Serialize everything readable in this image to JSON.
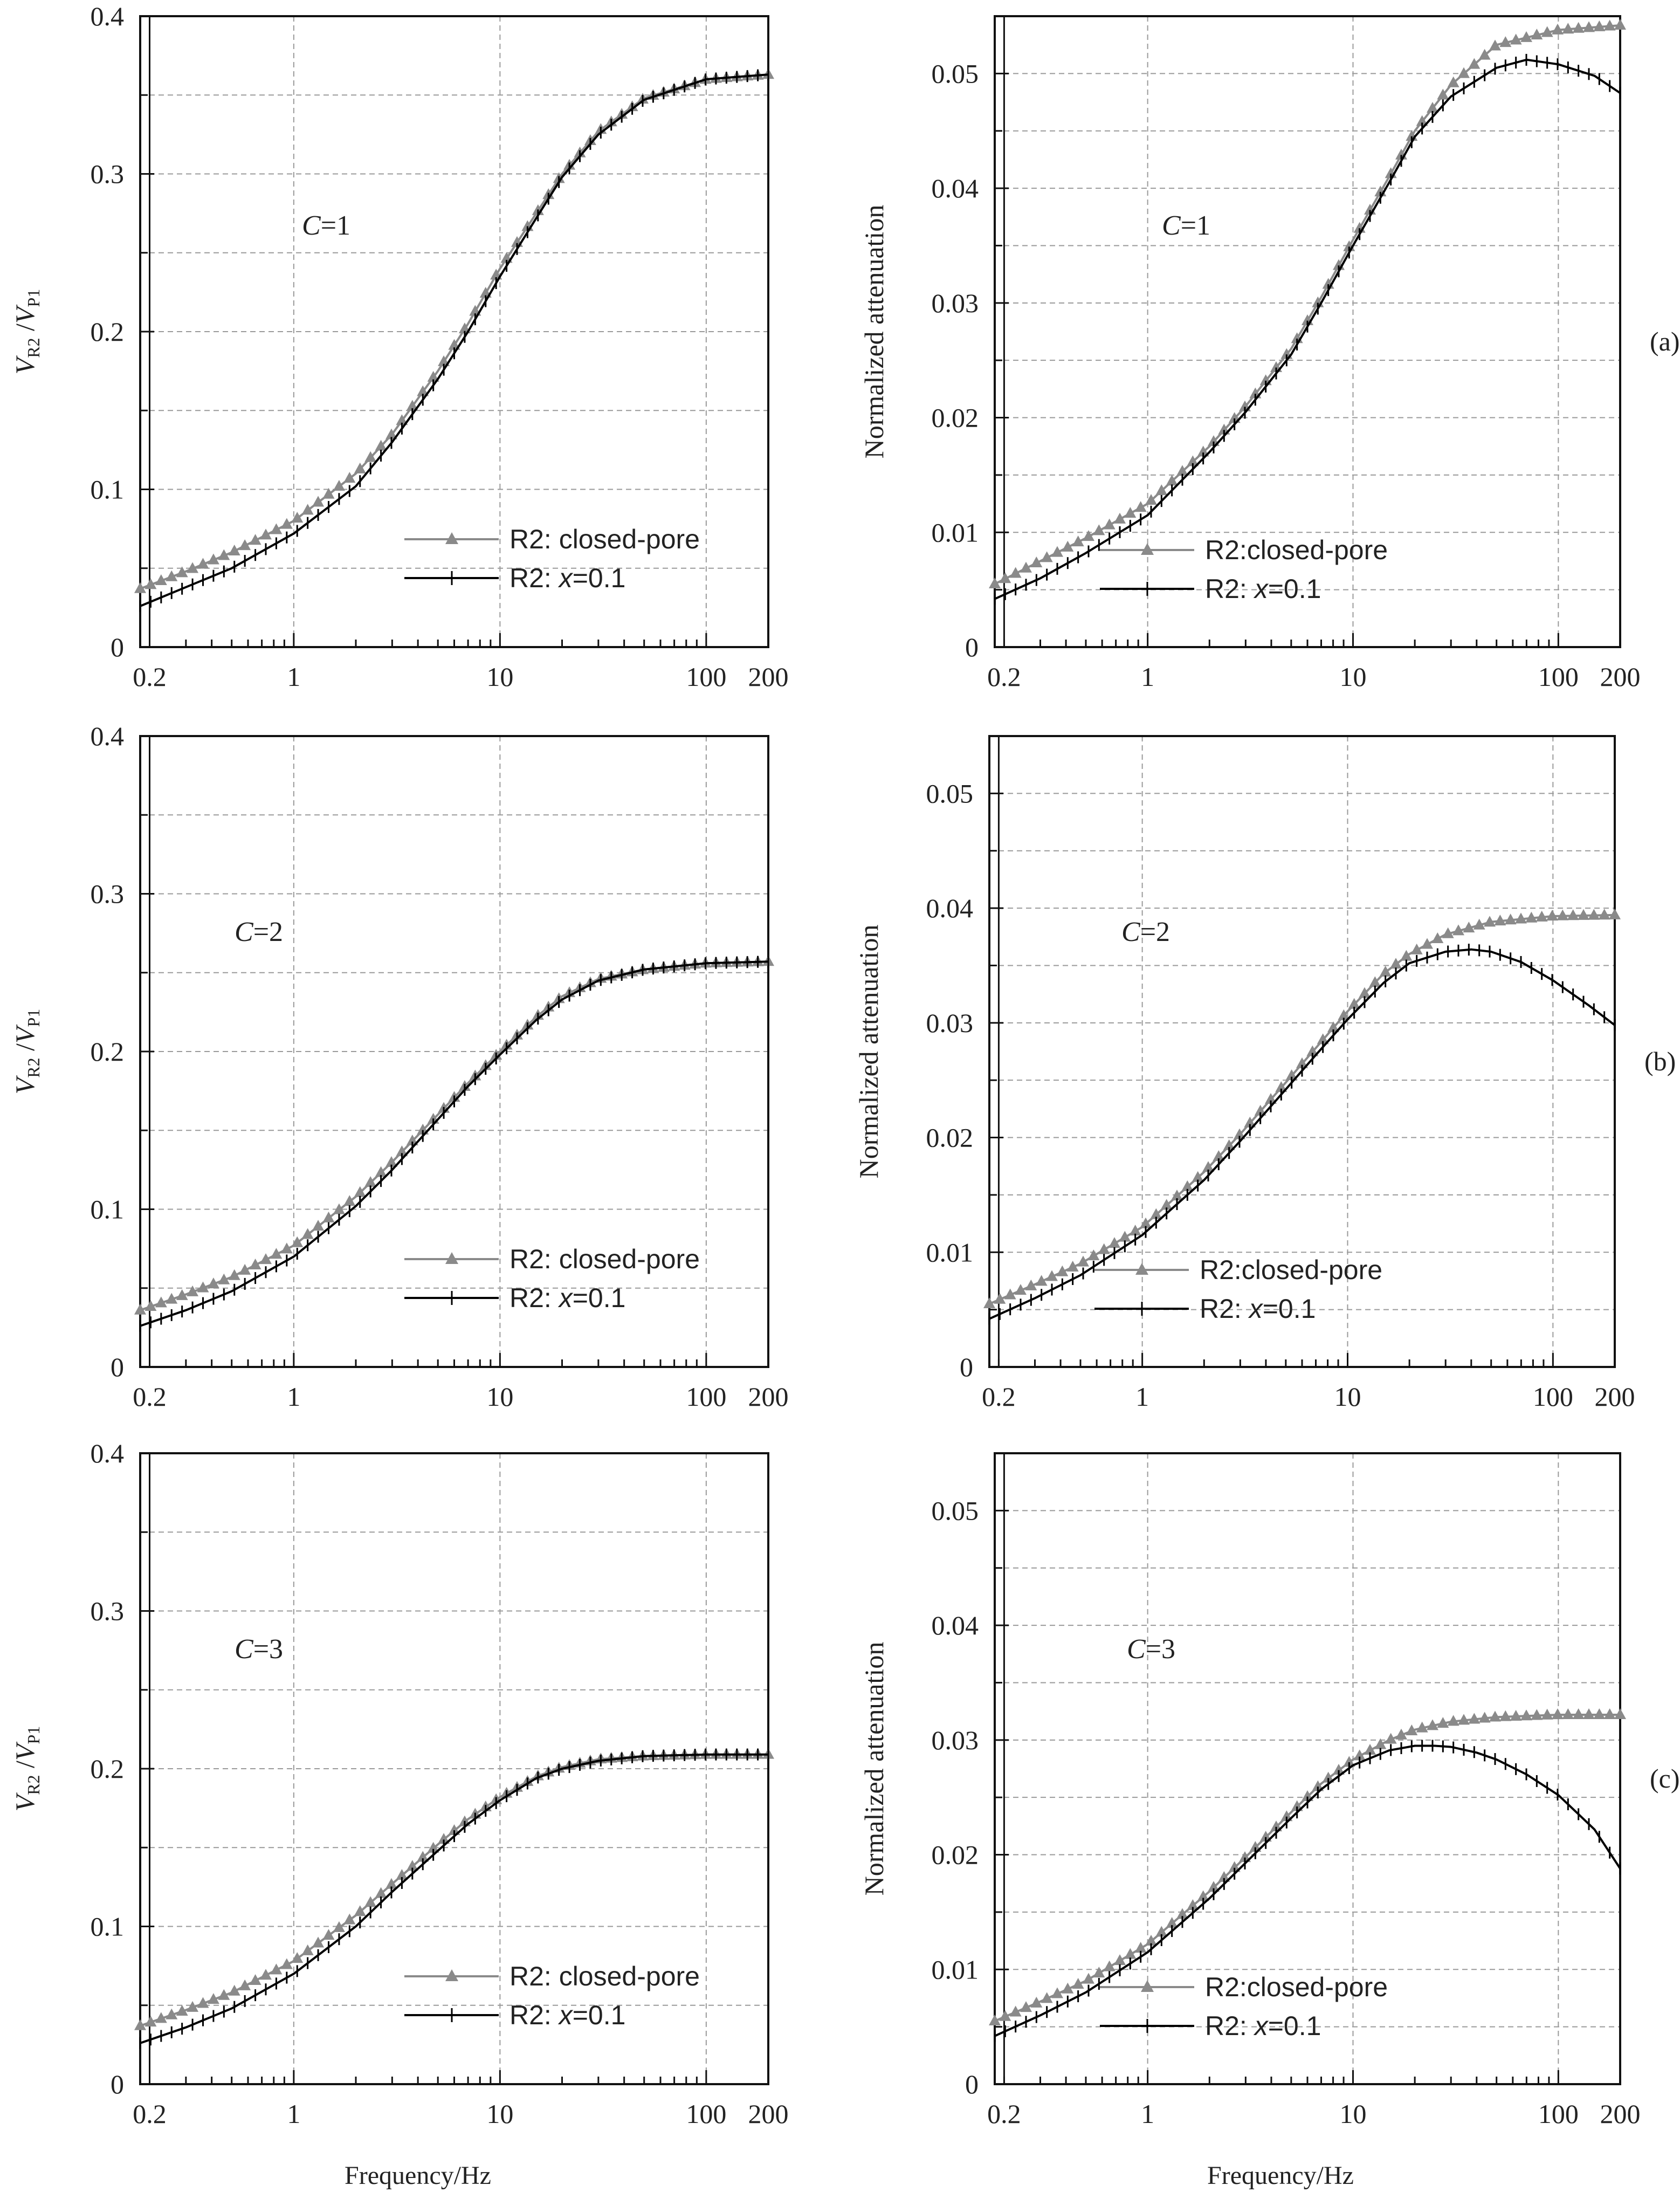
{
  "figure": {
    "xlabel": "Frequency/Hz",
    "ylabel_velocity": {
      "main": "V",
      "sub1": "R2",
      "slash": " /",
      "main2": "V",
      "sub2": "P1"
    },
    "ylabel_attenuation": "Normalized attenuation",
    "xticks": [
      "0.2",
      "1",
      "10",
      "100",
      "200"
    ]
  },
  "chart_data": [
    {
      "type": "line",
      "id": "a-velocity",
      "panel_label": "",
      "annotation": "C=1",
      "xscale": "log",
      "xlim": [
        0.18,
        200
      ],
      "ylim": [
        0,
        0.4
      ],
      "yticks": [
        "0",
        "0.1",
        "0.2",
        "0.3",
        "0.4"
      ],
      "legend": [
        "R2: closed-pore",
        "R2: x=0.1"
      ],
      "legend_position": "bottom-right",
      "series": [
        {
          "name": "R2: closed-pore",
          "color": "#8a8a8a",
          "marker": "triangle",
          "x": [
            0.18,
            0.3,
            0.5,
            1,
            2,
            3,
            5,
            7,
            10,
            15,
            20,
            30,
            50,
            100,
            200
          ],
          "y": [
            0.037,
            0.048,
            0.06,
            0.08,
            0.11,
            0.135,
            0.175,
            0.205,
            0.24,
            0.275,
            0.3,
            0.327,
            0.348,
            0.36,
            0.363
          ]
        },
        {
          "name": "R2: x=0.1",
          "color": "#000000",
          "marker": "plus",
          "x": [
            0.18,
            0.3,
            0.5,
            1,
            2,
            3,
            5,
            7,
            10,
            15,
            20,
            30,
            50,
            100,
            200
          ],
          "y": [
            0.026,
            0.038,
            0.05,
            0.072,
            0.102,
            0.13,
            0.17,
            0.2,
            0.235,
            0.272,
            0.298,
            0.325,
            0.347,
            0.36,
            0.363
          ]
        }
      ]
    },
    {
      "type": "line",
      "id": "a-attenuation",
      "panel_label": "(a)",
      "annotation": "C=1",
      "xscale": "log",
      "xlim": [
        0.18,
        200
      ],
      "ylim": [
        0,
        0.055
      ],
      "yticks": [
        "0",
        "0.01",
        "0.02",
        "0.03",
        "0.04",
        "0.05"
      ],
      "legend": [
        "R2:closed-pore",
        "R2: x=0.1"
      ],
      "legend_position": "bottom-right",
      "series": [
        {
          "name": "R2:closed-pore",
          "color": "#8a8a8a",
          "marker": "triangle",
          "x": [
            0.18,
            0.3,
            0.5,
            1,
            2,
            3,
            5,
            7,
            10,
            15,
            20,
            30,
            50,
            100,
            200
          ],
          "y": [
            0.0055,
            0.0075,
            0.0095,
            0.0125,
            0.0175,
            0.021,
            0.026,
            0.0305,
            0.0355,
            0.041,
            0.045,
            0.049,
            0.0525,
            0.0538,
            0.0542
          ]
        },
        {
          "name": "R2: x=0.1",
          "color": "#000000",
          "marker": "plus",
          "x": [
            0.18,
            0.3,
            0.5,
            1,
            2,
            3,
            5,
            7,
            10,
            15,
            20,
            30,
            50,
            70,
            100,
            150,
            200
          ],
          "y": [
            0.0042,
            0.006,
            0.0082,
            0.0115,
            0.017,
            0.0205,
            0.0255,
            0.03,
            0.035,
            0.0405,
            0.0445,
            0.048,
            0.0505,
            0.0512,
            0.0508,
            0.0498,
            0.0483
          ]
        }
      ]
    },
    {
      "type": "line",
      "id": "b-velocity",
      "panel_label": "",
      "annotation": "C=2",
      "xscale": "log",
      "xlim": [
        0.18,
        200
      ],
      "ylim": [
        0,
        0.4
      ],
      "yticks": [
        "0",
        "0.1",
        "0.2",
        "0.3",
        "0.4"
      ],
      "legend": [
        "R2: closed-pore",
        "R2: x=0.1"
      ],
      "legend_position": "bottom-right",
      "series": [
        {
          "name": "R2: closed-pore",
          "color": "#8a8a8a",
          "marker": "triangle",
          "x": [
            0.18,
            0.3,
            0.5,
            1,
            2,
            3,
            5,
            7,
            10,
            15,
            20,
            30,
            50,
            100,
            200
          ],
          "y": [
            0.036,
            0.046,
            0.057,
            0.077,
            0.108,
            0.13,
            0.16,
            0.18,
            0.2,
            0.222,
            0.235,
            0.246,
            0.252,
            0.256,
            0.257
          ]
        },
        {
          "name": "R2: x=0.1",
          "color": "#000000",
          "marker": "plus",
          "x": [
            0.18,
            0.3,
            0.5,
            1,
            2,
            3,
            5,
            7,
            10,
            15,
            20,
            30,
            50,
            100,
            200
          ],
          "y": [
            0.026,
            0.036,
            0.048,
            0.07,
            0.102,
            0.125,
            0.157,
            0.178,
            0.198,
            0.22,
            0.233,
            0.245,
            0.252,
            0.256,
            0.257
          ]
        }
      ]
    },
    {
      "type": "line",
      "id": "b-attenuation",
      "panel_label": "(b)",
      "annotation": "C=2",
      "xscale": "log",
      "xlim": [
        0.18,
        200
      ],
      "ylim": [
        0,
        0.055
      ],
      "yticks": [
        "0",
        "0.01",
        "0.02",
        "0.03",
        "0.04",
        "0.05"
      ],
      "legend": [
        "R2:closed-pore",
        "R2: x=0.1"
      ],
      "legend_position": "bottom-right",
      "series": [
        {
          "name": "R2:closed-pore",
          "color": "#8a8a8a",
          "marker": "triangle",
          "x": [
            0.18,
            0.3,
            0.5,
            1,
            2,
            3,
            5,
            7,
            10,
            15,
            20,
            30,
            50,
            100,
            200
          ],
          "y": [
            0.0055,
            0.0072,
            0.009,
            0.0122,
            0.017,
            0.0203,
            0.0248,
            0.0278,
            0.031,
            0.0343,
            0.036,
            0.0377,
            0.0388,
            0.0393,
            0.0394
          ]
        },
        {
          "name": "R2: x=0.1",
          "color": "#000000",
          "marker": "plus",
          "x": [
            0.18,
            0.3,
            0.5,
            1,
            2,
            3,
            5,
            7,
            10,
            15,
            20,
            30,
            40,
            50,
            70,
            100,
            150,
            200
          ],
          "y": [
            0.0042,
            0.006,
            0.008,
            0.0115,
            0.0163,
            0.0197,
            0.0242,
            0.0272,
            0.0303,
            0.0335,
            0.0352,
            0.0362,
            0.0364,
            0.0362,
            0.0353,
            0.0337,
            0.0315,
            0.0298
          ]
        }
      ]
    },
    {
      "type": "line",
      "id": "c-velocity",
      "panel_label": "",
      "annotation": "C=3",
      "xscale": "log",
      "xlim": [
        0.18,
        200
      ],
      "ylim": [
        0,
        0.4
      ],
      "yticks": [
        "0",
        "0.1",
        "0.2",
        "0.3",
        "0.4"
      ],
      "legend": [
        "R2: closed-pore",
        "R2: x=0.1"
      ],
      "legend_position": "bottom-right",
      "series": [
        {
          "name": "R2: closed-pore",
          "color": "#8a8a8a",
          "marker": "triangle",
          "x": [
            0.18,
            0.3,
            0.5,
            1,
            2,
            3,
            5,
            7,
            10,
            15,
            20,
            30,
            50,
            100,
            200
          ],
          "y": [
            0.037,
            0.047,
            0.058,
            0.078,
            0.107,
            0.127,
            0.152,
            0.168,
            0.182,
            0.195,
            0.201,
            0.206,
            0.208,
            0.209,
            0.209
          ]
        },
        {
          "name": "R2: x=0.1",
          "color": "#000000",
          "marker": "plus",
          "x": [
            0.18,
            0.3,
            0.5,
            1,
            2,
            3,
            5,
            7,
            10,
            15,
            20,
            30,
            50,
            100,
            200
          ],
          "y": [
            0.026,
            0.036,
            0.048,
            0.07,
            0.1,
            0.122,
            0.148,
            0.165,
            0.18,
            0.194,
            0.2,
            0.205,
            0.208,
            0.209,
            0.209
          ]
        }
      ]
    },
    {
      "type": "line",
      "id": "c-attenuation",
      "panel_label": "(c)",
      "annotation": "C=3",
      "xscale": "log",
      "xlim": [
        0.18,
        200
      ],
      "ylim": [
        0,
        0.055
      ],
      "yticks": [
        "0",
        "0.01",
        "0.02",
        "0.03",
        "0.04",
        "0.05"
      ],
      "legend": [
        "R2:closed-pore",
        "R2: x=0.1"
      ],
      "legend_position": "bottom-right",
      "series": [
        {
          "name": "R2:closed-pore",
          "color": "#8a8a8a",
          "marker": "triangle",
          "x": [
            0.18,
            0.3,
            0.5,
            1,
            2,
            3,
            5,
            7,
            10,
            15,
            20,
            30,
            50,
            100,
            200
          ],
          "y": [
            0.0055,
            0.0072,
            0.009,
            0.0122,
            0.0168,
            0.0198,
            0.0237,
            0.0262,
            0.0283,
            0.03,
            0.0309,
            0.0316,
            0.032,
            0.0322,
            0.0322
          ]
        },
        {
          "name": "R2: x=0.1",
          "color": "#000000",
          "marker": "plus",
          "x": [
            0.18,
            0.3,
            0.5,
            1,
            2,
            3,
            5,
            7,
            10,
            15,
            20,
            25,
            30,
            40,
            50,
            70,
            100,
            150,
            200
          ],
          "y": [
            0.0042,
            0.006,
            0.008,
            0.0115,
            0.0162,
            0.0193,
            0.0232,
            0.0257,
            0.0278,
            0.0291,
            0.0295,
            0.0295,
            0.0294,
            0.0289,
            0.0283,
            0.027,
            0.0252,
            0.0222,
            0.0188
          ]
        }
      ]
    }
  ]
}
